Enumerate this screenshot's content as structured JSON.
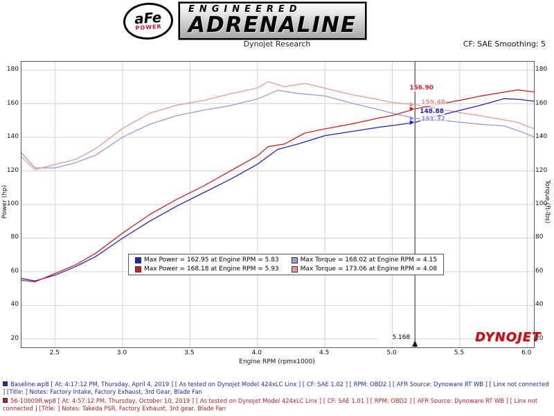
{
  "header": {
    "logo_afe": "aFe",
    "logo_power": "POWER",
    "brand_line1": "ENGINEERED",
    "brand_line2": "ADRENALINE"
  },
  "subheader": {
    "title": "Dynojet Research",
    "smoothing_label": "CF: SAE Smoothing: 5"
  },
  "watermark": "DYNOJET",
  "chart_data": {
    "type": "line",
    "xlabel": "Engine RPM (rpmx1000)",
    "ylabel_left": "Power (hp)",
    "ylabel_right": "Torque (ft-lbs)",
    "xlim": [
      2.25,
      6.05
    ],
    "ylim": [
      15,
      185
    ],
    "x_ticks": [
      2.5,
      3.0,
      3.5,
      4.0,
      4.5,
      5.0,
      5.5,
      6.0
    ],
    "y_ticks": [
      20,
      40,
      60,
      80,
      100,
      120,
      140,
      160,
      180
    ],
    "grid": true,
    "cursor": {
      "x": 5.168,
      "label": "5.168",
      "values": [
        {
          "label": "156.90",
          "color": "#d02028"
        },
        {
          "label": "159.48",
          "color": "#e88f8f"
        },
        {
          "label": "148.88",
          "color": "#2020c8"
        },
        {
          "label": "151.32",
          "color": "#9090e0"
        }
      ]
    },
    "series": [
      {
        "id": "baseline-torque",
        "name": "Baseline Torque (ft-lbs)",
        "color": "#9898e0",
        "points": [
          [
            2.25,
            130.7
          ],
          [
            2.35,
            121.8
          ],
          [
            2.5,
            121.8
          ],
          [
            2.65,
            124.9
          ],
          [
            2.8,
            129.4
          ],
          [
            3.0,
            140.1
          ],
          [
            3.2,
            147.7
          ],
          [
            3.4,
            152.9
          ],
          [
            3.6,
            156.1
          ],
          [
            3.8,
            158.9
          ],
          [
            4.0,
            162.8
          ],
          [
            4.15,
            168.0
          ],
          [
            4.3,
            166.1
          ],
          [
            4.5,
            164.6
          ],
          [
            4.7,
            160.3
          ],
          [
            4.9,
            156.5
          ],
          [
            5.0,
            154.4
          ],
          [
            5.17,
            151.3
          ],
          [
            5.3,
            150.6
          ],
          [
            5.5,
            149.0
          ],
          [
            5.65,
            147.8
          ],
          [
            5.83,
            146.8
          ],
          [
            5.95,
            143.5
          ],
          [
            6.05,
            140.3
          ]
        ]
      },
      {
        "id": "takeda-torque",
        "name": "Takeda PSR Torque (ft-lbs)",
        "color": "#e89898",
        "points": [
          [
            2.25,
            128.4
          ],
          [
            2.35,
            120.7
          ],
          [
            2.5,
            123.9
          ],
          [
            2.65,
            126.8
          ],
          [
            2.8,
            133.2
          ],
          [
            3.0,
            145.3
          ],
          [
            3.2,
            154.3
          ],
          [
            3.4,
            159.1
          ],
          [
            3.6,
            161.9
          ],
          [
            3.8,
            165.9
          ],
          [
            4.0,
            169.4
          ],
          [
            4.08,
            173.1
          ],
          [
            4.2,
            170.1
          ],
          [
            4.35,
            172.1
          ],
          [
            4.5,
            169.2
          ],
          [
            4.7,
            165.4
          ],
          [
            4.9,
            162.4
          ],
          [
            5.0,
            160.7
          ],
          [
            5.17,
            159.4
          ],
          [
            5.3,
            157.6
          ],
          [
            5.5,
            154.7
          ],
          [
            5.65,
            152.9
          ],
          [
            5.8,
            150.8
          ],
          [
            5.93,
            148.9
          ],
          [
            6.05,
            145.1
          ]
        ]
      },
      {
        "id": "baseline-power",
        "name": "Baseline Power (hp)",
        "color": "#2020c8",
        "points": [
          [
            2.25,
            56
          ],
          [
            2.35,
            54.5
          ],
          [
            2.5,
            58
          ],
          [
            2.65,
            63
          ],
          [
            2.8,
            69
          ],
          [
            3.0,
            80
          ],
          [
            3.2,
            90
          ],
          [
            3.4,
            99
          ],
          [
            3.6,
            107
          ],
          [
            3.8,
            115
          ],
          [
            4.0,
            124
          ],
          [
            4.15,
            132.8
          ],
          [
            4.3,
            136
          ],
          [
            4.5,
            141
          ],
          [
            4.7,
            143.5
          ],
          [
            4.9,
            146
          ],
          [
            5.0,
            147
          ],
          [
            5.17,
            148.9
          ],
          [
            5.3,
            152
          ],
          [
            5.5,
            156
          ],
          [
            5.65,
            159
          ],
          [
            5.83,
            163
          ],
          [
            5.95,
            162.5
          ],
          [
            6.05,
            161.5
          ]
        ]
      },
      {
        "id": "takeda-power",
        "name": "Takeda PSR Power (hp)",
        "color": "#d02028",
        "points": [
          [
            2.25,
            55
          ],
          [
            2.35,
            54
          ],
          [
            2.5,
            59
          ],
          [
            2.65,
            64
          ],
          [
            2.8,
            71
          ],
          [
            3.0,
            83
          ],
          [
            3.2,
            94
          ],
          [
            3.4,
            103
          ],
          [
            3.6,
            111
          ],
          [
            3.8,
            120
          ],
          [
            4.0,
            129
          ],
          [
            4.08,
            134.5
          ],
          [
            4.2,
            136
          ],
          [
            4.35,
            142.5
          ],
          [
            4.5,
            145
          ],
          [
            4.7,
            148
          ],
          [
            4.9,
            151.5
          ],
          [
            5.0,
            153
          ],
          [
            5.17,
            156.9
          ],
          [
            5.3,
            159
          ],
          [
            5.5,
            162
          ],
          [
            5.65,
            164.5
          ],
          [
            5.8,
            166.5
          ],
          [
            5.93,
            168.2
          ],
          [
            6.05,
            167
          ]
        ]
      }
    ],
    "legend": [
      {
        "color": "#2020c8",
        "label": "Max Power = 162.95 at Engine RPM = 5.83"
      },
      {
        "color": "#9898e0",
        "label": "Max Torque = 168.02 at Engine RPM = 4.15"
      },
      {
        "color": "#d02028",
        "label": "Max Power = 168.18 at Engine RPM = 5.93"
      },
      {
        "color": "#e89898",
        "label": "Max Torque = 173.06 at Engine RPM = 4.08"
      }
    ]
  },
  "footer": {
    "runs": [
      {
        "color": "#2028b8",
        "text": "Baseline.wp8 [ At: 4:17:12 PM, Thursday, April 4, 2019 ] [ As tested on Dynojet Model 424xLC Linx ] [ CF: SAE 1.02 ] [ RPM: OBD2 ] [ AFR Source: Dynoware RT WB ] [ Linx not connected ] [Title: ]  Notes: Factory Intake, Factory Exhaust, 3rd Gear, Blade Fan"
      },
      {
        "color": "#b82028",
        "text": "56-10009R.wp8 [ At: 4:57:12 PM, Thursday, October 10, 2019 ] [ As tested on Dynojet Model 424xLC Linx ] [ CF: SAE 1.01 ] [ RPM: OBD2 ] [ AFR Source: Dynoware RT WB ] [ Linx not connected ] [Title: ]  Notes: Takeda PSR, Factory Exhaust, 3rd gear, Blade Fan"
      }
    ]
  }
}
